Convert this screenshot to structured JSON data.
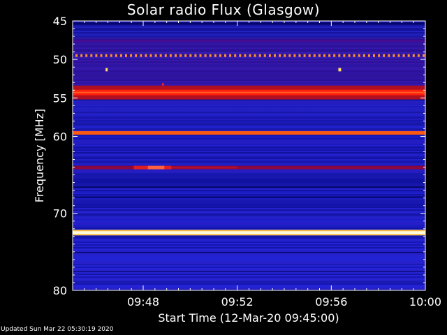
{
  "chart_data": {
    "type": "heatmap",
    "title": "Solar radio Flux (Glasgow)",
    "xlabel": "Start Time (12-Mar-20 09:45:00)",
    "ylabel": "Frequency [MHz]",
    "x_ticks": [
      "09:48",
      "09:52",
      "09:56",
      "10:00"
    ],
    "x_tick_minutes": [
      48,
      52,
      56,
      60
    ],
    "xlim_minutes": [
      45,
      60
    ],
    "y_ticks": [
      45,
      50,
      55,
      60,
      70,
      80
    ],
    "ylim": [
      45,
      80
    ],
    "bands": [
      {
        "freq": 49.5,
        "level": "dotted-orange"
      },
      {
        "freq": 54.3,
        "level": "strong-red"
      },
      {
        "freq": 59.5,
        "level": "orange"
      },
      {
        "freq": 64.0,
        "level": "dark-red"
      },
      {
        "freq": 72.5,
        "level": "white-yellow"
      }
    ],
    "palette": {
      "low": "#0000a8",
      "mid": "#3a2bd8",
      "purple": "#4a1090",
      "red": "#e01010",
      "orange": "#ff6a10",
      "yellow": "#fff080",
      "white": "#ffffff"
    }
  },
  "footer": "Updated Sun Mar 22 05:30:19 2020"
}
